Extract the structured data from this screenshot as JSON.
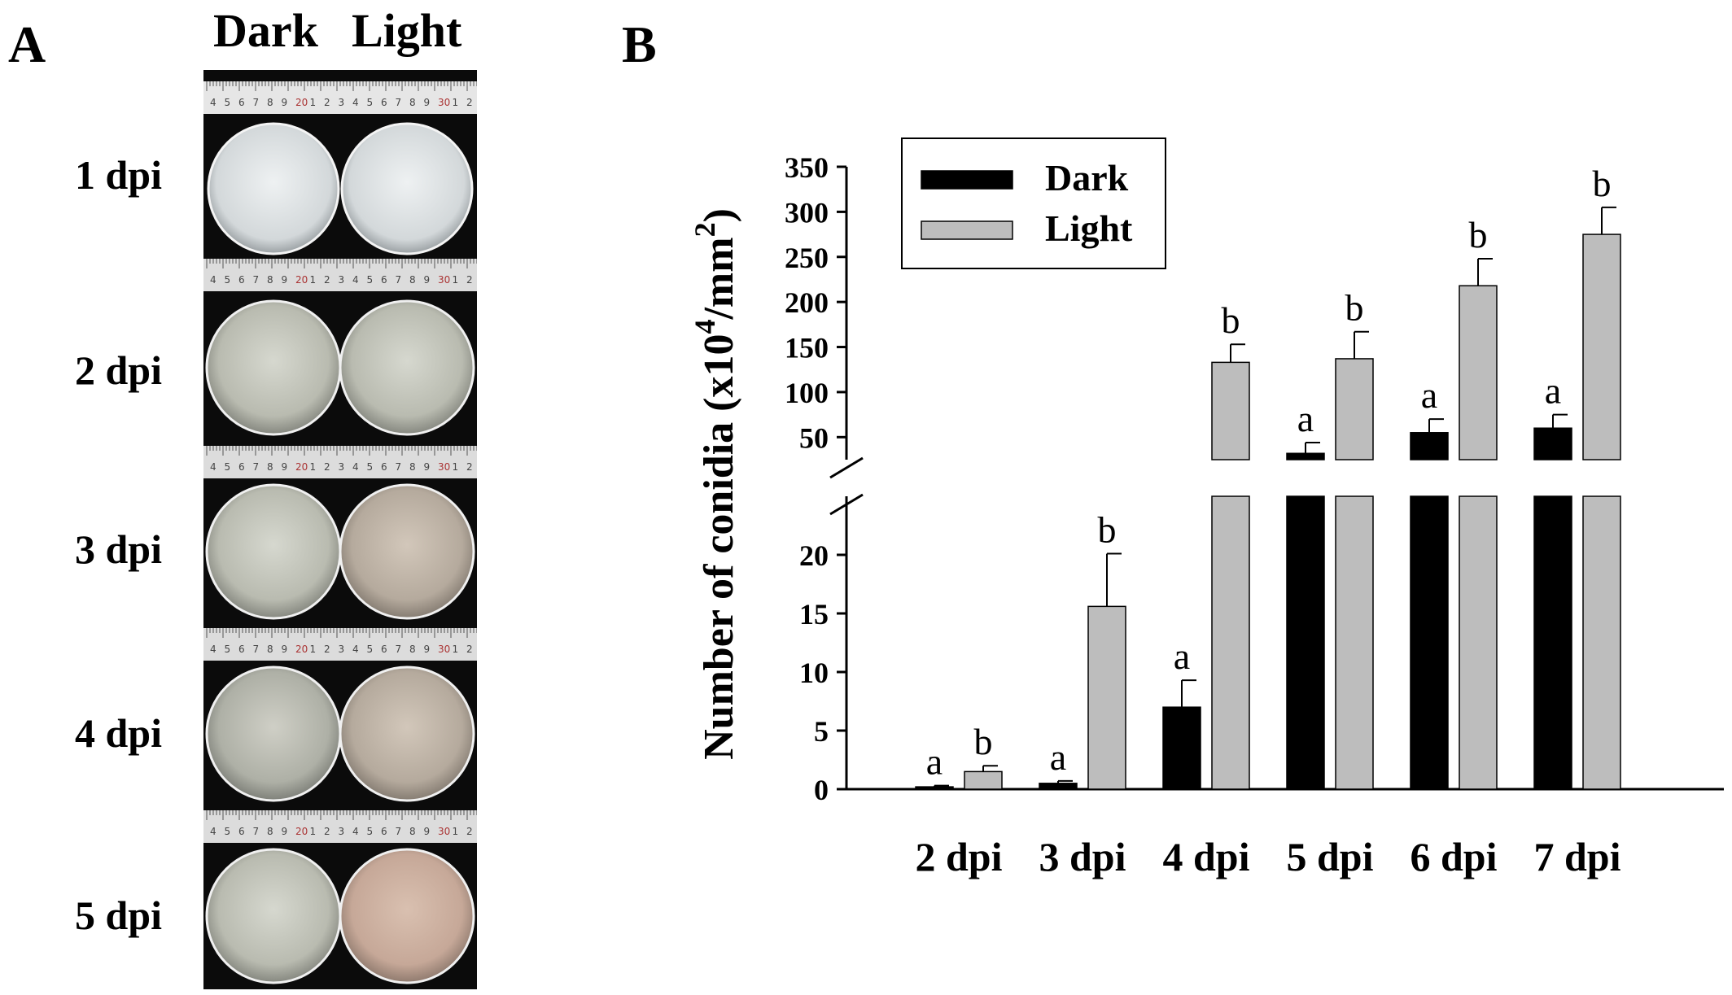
{
  "panel_a": {
    "label": "A",
    "col_dark": "Dark",
    "col_light": "Light",
    "rows": [
      "1 dpi",
      "2 dpi",
      "3 dpi",
      "4 dpi",
      "5 dpi"
    ],
    "ruler_numbers": [
      "4",
      "5",
      "6",
      "7",
      "8",
      "9",
      "20",
      "1",
      "2",
      "3",
      "4",
      "5",
      "6",
      "7",
      "8",
      "9",
      "30",
      "1",
      "2"
    ]
  },
  "panel_b": {
    "label": "B"
  },
  "chart_data": {
    "type": "bar",
    "categories": [
      "2 dpi",
      "3 dpi",
      "4 dpi",
      "5 dpi",
      "6 dpi",
      "7 dpi"
    ],
    "series": [
      {
        "name": "Dark",
        "color": "#000000",
        "values": [
          0.2,
          0.5,
          7.0,
          32,
          55,
          60
        ],
        "errors": [
          0.1,
          0.2,
          2.3,
          12,
          15,
          15
        ],
        "letters": [
          "a",
          "a",
          "a",
          "a",
          "a",
          "a"
        ]
      },
      {
        "name": "Light",
        "color": "#bdbdbd",
        "values": [
          1.5,
          15.6,
          133,
          137,
          218,
          275
        ],
        "errors": [
          0.5,
          4.5,
          20,
          30,
          30,
          30
        ],
        "letters": [
          "b",
          "b",
          "b",
          "b",
          "b",
          "b"
        ]
      }
    ],
    "ylabel_main": "Number of conidia (x10",
    "ylabel_sup1": "4",
    "ylabel_mid": "/mm",
    "ylabel_sup2": "2",
    "ylabel_end": ")",
    "y_broken": true,
    "lower_ylim": [
      0,
      25
    ],
    "upper_ylim": [
      25,
      350
    ],
    "lower_ticks": [
      0,
      5,
      10,
      15,
      20
    ],
    "upper_ticks": [
      50,
      100,
      150,
      200,
      250,
      300,
      350
    ],
    "legend_placement": "top-left",
    "grid": false
  }
}
